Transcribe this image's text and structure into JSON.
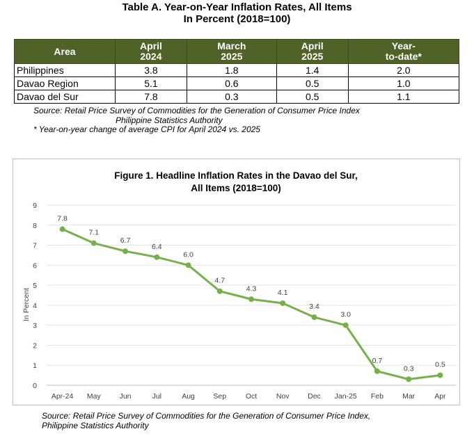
{
  "table": {
    "title_line1": "Table A. Year-on-Year Inflation Rates, All Items",
    "title_line2": "In Percent (2018=100)",
    "headers": {
      "area": "Area",
      "col1": [
        "April",
        "2024"
      ],
      "col2": [
        "March",
        "2025"
      ],
      "col3": [
        "April",
        "2025"
      ],
      "col4": [
        "Year-",
        "to-date*"
      ]
    },
    "rows": [
      {
        "area": "Philippines",
        "v1": "3.8",
        "v2": "1.8",
        "v3": "1.4",
        "v4": "2.0"
      },
      {
        "area": "Davao Region",
        "v1": "5.1",
        "v2": "0.6",
        "v3": "0.5",
        "v4": "1.0"
      },
      {
        "area": "Davao del Sur",
        "v1": "7.8",
        "v2": "0.3",
        "v3": "0.5",
        "v4": "1.1"
      }
    ],
    "source_line1": "Source: Retail Price Survey of Commodities for the Generation of Consumer Price Index",
    "source_line2": "Philippine Statistics Authority",
    "footnote": "* Year-on-year change of average CPI for April 2024 vs. 2025"
  },
  "chart_data": {
    "type": "line",
    "title": [
      "Figure 1. Headline Inflation Rates in the Davao del Sur,",
      "All Items (2018=100)"
    ],
    "ylabel": "In Percent",
    "xlabel": "",
    "ylim": [
      0,
      9
    ],
    "yticks": [
      0,
      1,
      2,
      3,
      4,
      5,
      6,
      7,
      8,
      9
    ],
    "grid": true,
    "categories": [
      "Apr-24",
      "May",
      "Jun",
      "Jul",
      "Aug",
      "Sep",
      "Oct",
      "Nov",
      "Dec",
      "Jan-25",
      "Feb",
      "Mar",
      "Apr"
    ],
    "values": [
      7.8,
      7.1,
      6.7,
      6.4,
      6.0,
      4.7,
      4.3,
      4.1,
      3.4,
      3.0,
      0.7,
      0.3,
      0.5
    ],
    "labels": [
      "7.8",
      "7.1",
      "6.7",
      "6.4",
      "6.0",
      "4.7",
      "4.3",
      "4.1",
      "3.4",
      "3.0",
      "0.7",
      "0.3",
      "0.5"
    ],
    "color": "#77b04a"
  },
  "figure_source": {
    "line1": "Source: Retail Price Survey of Commodities for the Generation of Consumer Price Index,",
    "line2": "Philippine Statistics Authority"
  }
}
